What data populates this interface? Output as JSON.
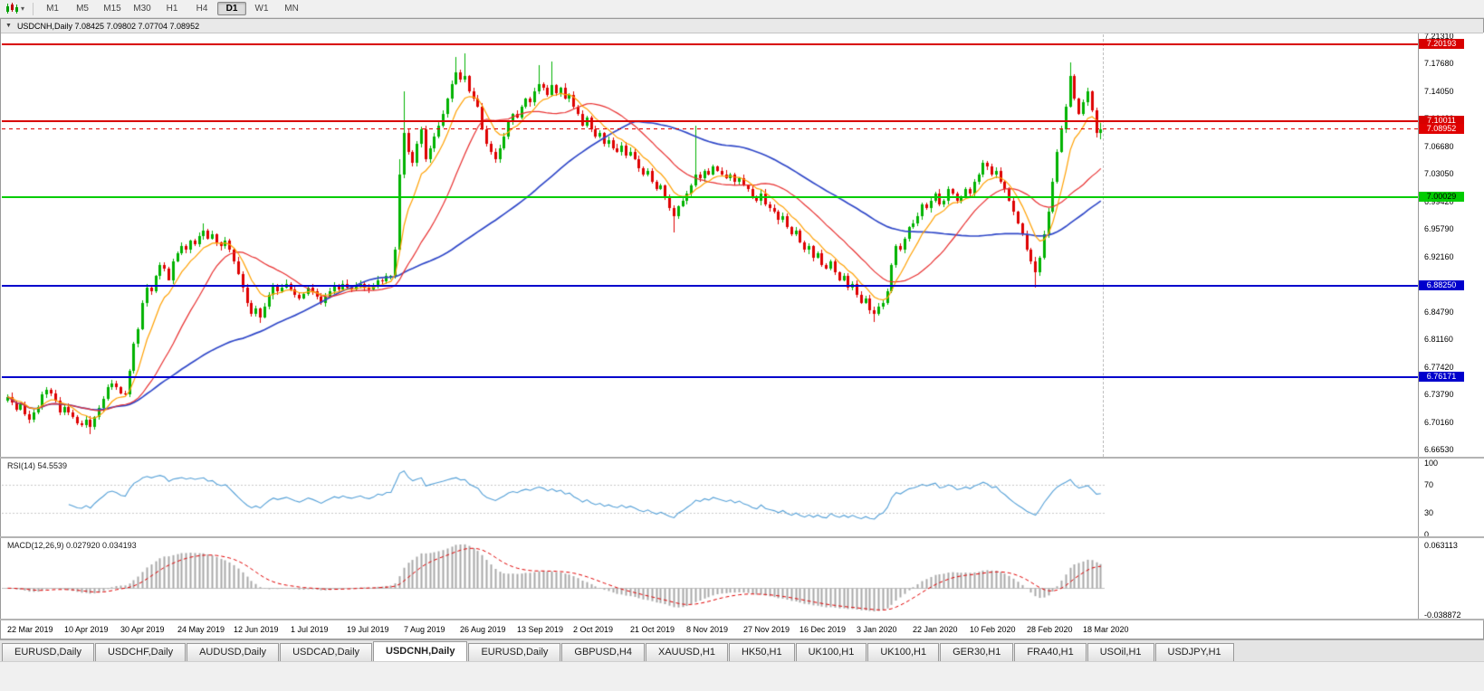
{
  "toolbar": {
    "timeframes": [
      "M1",
      "M5",
      "M15",
      "M30",
      "H1",
      "H4",
      "D1",
      "W1",
      "MN"
    ],
    "active_timeframe": "D1"
  },
  "icons": {
    "collapse": "▼",
    "caret": "▾"
  },
  "chart": {
    "symbol": "USDCNH,Daily",
    "title": "USDCNH,Daily  7.08425 7.09802 7.07704 7.08952"
  },
  "price_axis": {
    "ticks": [
      "7.21310",
      "7.17680",
      "7.14050",
      "7.10420",
      "7.06680",
      "7.03050",
      "6.99420",
      "6.95790",
      "6.92160",
      "6.88530",
      "6.84790",
      "6.81160",
      "6.77420",
      "6.73790",
      "6.70160",
      "6.66530"
    ]
  },
  "levels": [
    {
      "name": "resistance-upper",
      "value": "7.20193",
      "price": 7.20193,
      "color": "#D80000",
      "style": "solid",
      "width": 2,
      "text_color": "#ffffff"
    },
    {
      "name": "resistance-near",
      "value": "7.10011",
      "price": 7.10011,
      "color": "#D80000",
      "style": "solid",
      "width": 2,
      "text_color": "#ffffff"
    },
    {
      "name": "bid-price",
      "value": "7.08952",
      "price": 7.08952,
      "color": "#E00000",
      "style": "dashed",
      "width": 1,
      "text_color": "#ffffff"
    },
    {
      "name": "psych-level-seven",
      "value": "7.00029",
      "price": 7.00029,
      "color": "#00CC00",
      "style": "solid",
      "width": 2,
      "text_color": "#000000"
    },
    {
      "name": "support-mid",
      "value": "6.88250",
      "price": 6.8825,
      "color": "#0000CC",
      "style": "solid",
      "width": 2,
      "text_color": "#ffffff"
    },
    {
      "name": "support-lower",
      "value": "6.76171",
      "price": 6.76171,
      "color": "#0000CC",
      "style": "solid",
      "width": 2,
      "text_color": "#ffffff"
    }
  ],
  "rsi": {
    "label": "RSI(14) 54.5539",
    "period": 14,
    "value": 54.5539,
    "axis": [
      "100",
      "70",
      "30",
      "0"
    ],
    "level_lines": [
      70,
      30
    ],
    "color": "#55A0D7"
  },
  "macd": {
    "label": "MACD(12,26,9) 0.027920 0.034193",
    "fast": 12,
    "slow": 26,
    "signal": 9,
    "macd_value": 0.02792,
    "signal_value": 0.034193,
    "axis_top": "0.063113",
    "axis_bottom": "-0.038872",
    "hist_color": "#A8A8A8",
    "signal_color": "#E00000"
  },
  "time_axis": {
    "labels": [
      "22 Mar 2019",
      "10 Apr 2019",
      "30 Apr 2019",
      "24 May 2019",
      "12 Jun 2019",
      "1 Jul 2019",
      "19 Jul 2019",
      "7 Aug 2019",
      "26 Aug 2019",
      "13 Sep 2019",
      "2 Oct 2019",
      "21 Oct 2019",
      "8 Nov 2019",
      "27 Nov 2019",
      "16 Dec 2019",
      "3 Jan 2020",
      "22 Jan 2020",
      "10 Feb 2020",
      "28 Feb 2020",
      "18 Mar 2020"
    ],
    "label_step": 13
  },
  "tabs": {
    "items": [
      {
        "label": "EURUSD,Daily"
      },
      {
        "label": "USDCHF,Daily"
      },
      {
        "label": "AUDUSD,Daily"
      },
      {
        "label": "USDCAD,Daily"
      },
      {
        "label": "USDCNH,Daily"
      },
      {
        "label": "EURUSD,Daily"
      },
      {
        "label": "GBPUSD,H4"
      },
      {
        "label": "XAUUSD,H1"
      },
      {
        "label": "HK50,H1"
      },
      {
        "label": "UK100,H1"
      },
      {
        "label": "UK100,H1"
      },
      {
        "label": "GER30,H1"
      },
      {
        "label": "FRA40,H1"
      },
      {
        "label": "USOil,H1"
      },
      {
        "label": "USDJPY,H1"
      }
    ],
    "active_index": 4
  },
  "chart_data": {
    "type": "candlestick",
    "symbol": "USDCNH",
    "timeframe": "Daily",
    "y_range": [
      6.6653,
      7.2131
    ],
    "grid": false,
    "bull_color": "#00B200",
    "bear_color": "#DE0000",
    "first_open": 6.73,
    "last_candle": {
      "open": 7.08425,
      "high": 7.09802,
      "low": 7.07704,
      "close": 7.08952
    },
    "closes": [
      6.735,
      6.728,
      6.718,
      6.725,
      6.712,
      6.705,
      6.715,
      6.722,
      6.738,
      6.745,
      6.74,
      6.73,
      6.715,
      6.722,
      6.715,
      6.708,
      6.7,
      6.698,
      6.705,
      6.695,
      6.708,
      6.72,
      6.732,
      6.748,
      6.753,
      6.748,
      6.74,
      6.738,
      6.77,
      6.805,
      6.825,
      6.86,
      6.88,
      6.875,
      6.895,
      6.91,
      6.905,
      6.89,
      6.915,
      6.925,
      6.935,
      6.93,
      6.942,
      6.938,
      6.948,
      6.955,
      6.945,
      6.95,
      6.94,
      6.935,
      6.942,
      6.93,
      6.915,
      6.898,
      6.88,
      6.86,
      6.845,
      6.852,
      6.84,
      6.855,
      6.87,
      6.882,
      6.875,
      6.88,
      6.885,
      6.878,
      6.87,
      6.865,
      6.872,
      6.88,
      6.875,
      6.868,
      6.86,
      6.868,
      6.875,
      6.882,
      6.878,
      6.885,
      6.88,
      6.878,
      6.882,
      6.885,
      6.88,
      6.878,
      6.882,
      6.89,
      6.888,
      6.895,
      6.895,
      6.93,
      7.03,
      7.085,
      7.06,
      7.045,
      7.07,
      7.09,
      7.05,
      7.065,
      7.08,
      7.095,
      7.11,
      7.13,
      7.15,
      7.165,
      7.155,
      7.16,
      7.14,
      7.13,
      7.12,
      7.09,
      7.07,
      7.06,
      7.05,
      7.065,
      7.08,
      7.1,
      7.11,
      7.105,
      7.12,
      7.13,
      7.125,
      7.14,
      7.15,
      7.145,
      7.135,
      7.148,
      7.138,
      7.145,
      7.13,
      7.135,
      7.12,
      7.11,
      7.095,
      7.105,
      7.09,
      7.08,
      7.085,
      7.07,
      7.075,
      7.065,
      7.06,
      7.068,
      7.055,
      7.06,
      7.05,
      7.038,
      7.03,
      7.035,
      7.02,
      7.01,
      7.015,
      7.0,
      6.985,
      6.975,
      6.988,
      6.995,
      7.005,
      7.015,
      7.03,
      7.025,
      7.035,
      7.03,
      7.04,
      7.035,
      7.03,
      7.025,
      7.03,
      7.02,
      7.025,
      7.015,
      7.01,
      7.0,
      6.995,
      7.005,
      6.99,
      6.985,
      6.98,
      6.97,
      6.975,
      6.96,
      6.95,
      6.955,
      6.94,
      6.93,
      6.935,
      6.92,
      6.925,
      6.91,
      6.905,
      6.915,
      6.9,
      6.89,
      6.895,
      6.88,
      6.885,
      6.87,
      6.86,
      6.865,
      6.85,
      6.845,
      6.855,
      6.86,
      6.875,
      6.91,
      6.935,
      6.93,
      6.945,
      6.96,
      6.965,
      6.975,
      6.99,
      6.985,
      6.995,
      7.005,
      6.99,
      6.995,
      7.01,
      7.005,
      6.995,
      7.0,
      7.01,
      7.005,
      7.02,
      7.03,
      7.045,
      7.04,
      7.03,
      7.035,
      7.02,
      7.01,
      6.995,
      6.98,
      6.965,
      6.95,
      6.93,
      6.915,
      6.9,
      6.92,
      6.95,
      6.98,
      7.02,
      7.06,
      7.09,
      7.12,
      7.16,
      7.13,
      7.11,
      7.125,
      7.14,
      7.115,
      7.0843,
      7.0895
    ],
    "wick_overrides": {
      "19": [
        null,
        6.685
      ],
      "45": [
        6.965,
        null
      ],
      "58": [
        null,
        6.833
      ],
      "90": [
        7.05,
        null
      ],
      "91": [
        7.14,
        null
      ],
      "103": [
        7.185,
        null
      ],
      "105": [
        7.19,
        null
      ],
      "122": [
        7.175,
        null
      ],
      "125": [
        7.18,
        null
      ],
      "153": [
        null,
        6.952
      ],
      "158": [
        7.095,
        null
      ],
      "199": [
        null,
        6.834
      ],
      "236": [
        null,
        6.879
      ],
      "244": [
        7.178,
        null
      ]
    },
    "overlays": [
      {
        "name": "fast-ma",
        "type": "ema",
        "period": 8,
        "color": "#FFA000"
      },
      {
        "name": "mid-ma",
        "type": "sma",
        "period": 20,
        "color": "#E83030"
      },
      {
        "name": "slow-ma",
        "type": "sma",
        "period": 55,
        "color": "#3048C8"
      }
    ],
    "rsi_range": [
      0,
      100
    ],
    "macd_range": [
      -0.042,
      0.068
    ]
  }
}
